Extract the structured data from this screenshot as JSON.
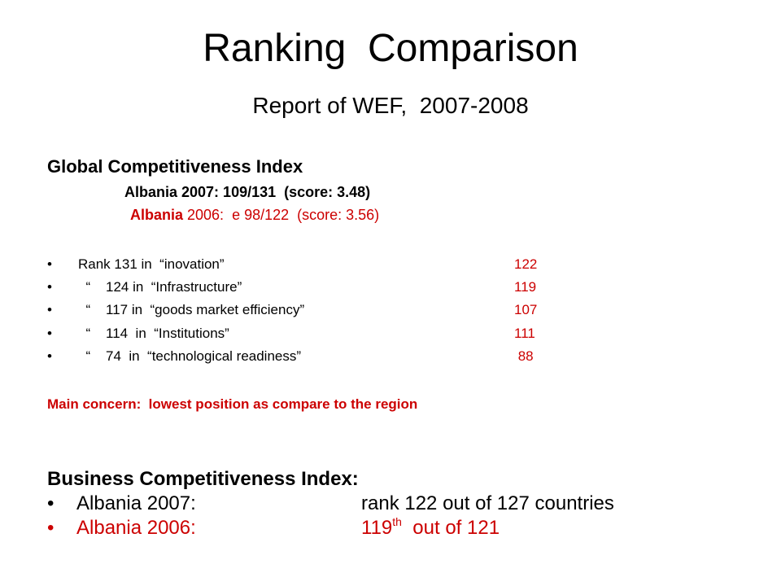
{
  "title": "Ranking  Comparison",
  "subtitle": "Report of WEF,  2007-2008",
  "gci": {
    "heading": "Global Competitiveness Index",
    "line_2007": "Albania 2007: 109/131  (score: 3.48)",
    "line_2006_country": "Albania",
    "line_2006_rest": " 2006:  e 98/122  (score: 3.56)",
    "bullet_char": "•",
    "ranks": [
      {
        "text": "Rank 131 in  “inovation”",
        "prev": "122"
      },
      {
        "text": "  “    124 in  “Infrastructure”",
        "prev": "119"
      },
      {
        "text": "  “    117 in  “goods market efficiency”",
        "prev": "107"
      },
      {
        "text": "  “    114  in  “Institutions”",
        "prev": "111"
      },
      {
        "text": "  “    74  in  “technological readiness”",
        "prev": " 88"
      }
    ],
    "concern": "Main concern:  lowest position as compare to the region"
  },
  "bci": {
    "heading": "Business Competitiveness Index:",
    "bullet_char": "•",
    "row_2007_label": "Albania 2007:",
    "row_2007_value": "rank 122 out of 127 countries",
    "row_2006_label": "Albania 2006:",
    "row_2006_value_num": "119",
    "row_2006_value_sup": "th",
    "row_2006_value_rest": "  out of 121"
  },
  "colors": {
    "text": "#000000",
    "accent_red": "#cc0000",
    "background": "#ffffff"
  }
}
